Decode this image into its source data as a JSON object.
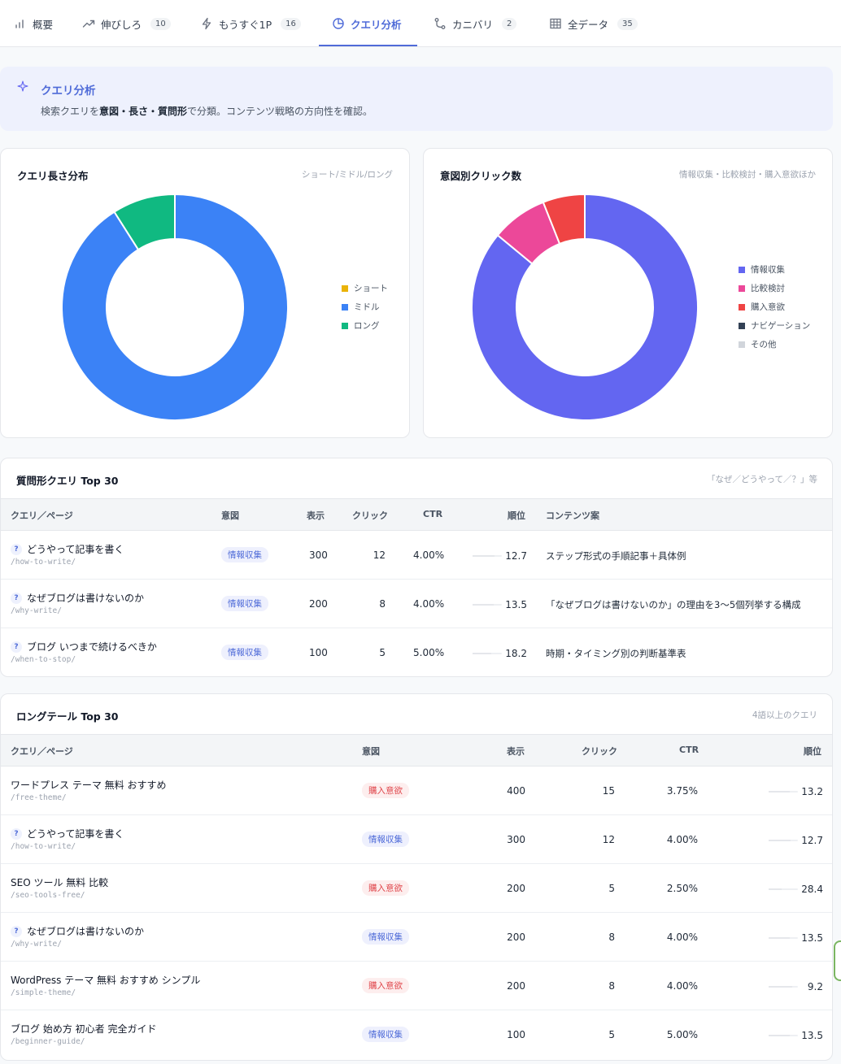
{
  "tabs": [
    {
      "label": "概要",
      "badge": null,
      "icon": "bar-chart-icon"
    },
    {
      "label": "伸びしろ",
      "badge": "10",
      "icon": "trend-up-icon"
    },
    {
      "label": "もうすぐ1P",
      "badge": "16",
      "icon": "lightning-icon"
    },
    {
      "label": "クエリ分析",
      "badge": null,
      "icon": "pie-chart-icon",
      "active": true
    },
    {
      "label": "カニバリ",
      "badge": "2",
      "icon": "branch-icon"
    },
    {
      "label": "全データ",
      "badge": "35",
      "icon": "grid-icon"
    }
  ],
  "banner": {
    "title": "クエリ分析",
    "desc_pre": "検索クエリを",
    "desc_bold": "意図・長さ・質問形",
    "desc_post": "で分類。コンテンツ戦略の方向性を確認。"
  },
  "length_card": {
    "title": "クエリ長さ分布",
    "sub": "ショート/ミドル/ロング"
  },
  "intent_card": {
    "title": "意図別クリック数",
    "sub": "情報収集・比較検討・購入意欲ほか"
  },
  "chart_data": [
    {
      "type": "pie",
      "title": "クエリ長さ分布",
      "labels": [
        "ショート",
        "ミドル",
        "ロング"
      ],
      "values": [
        0,
        91,
        9
      ],
      "colors": [
        "#eab308",
        "#3b82f6",
        "#10b981"
      ],
      "legend": "right"
    },
    {
      "type": "pie",
      "title": "意図別クリック数",
      "labels": [
        "情報収集",
        "比較検討",
        "購入意欲",
        "ナビゲーション",
        "その他"
      ],
      "values": [
        86,
        8,
        6,
        0,
        0
      ],
      "colors": [
        "#6366f1",
        "#ec4899",
        "#ef4444",
        "#334155",
        "#d1d5db"
      ],
      "legend": "right"
    }
  ],
  "question_table": {
    "title": "質問形クエリ Top 30",
    "sub": "「なぜ／どうやって／？」等",
    "headers": [
      "クエリ／ページ",
      "意図",
      "表示",
      "クリック",
      "CTR",
      "順位",
      "コンテンツ案"
    ],
    "rows": [
      {
        "q": "どうやって記事を書く",
        "path": "/how-to-write/",
        "intent": "情報収集",
        "imp": "300",
        "clk": "12",
        "ctr": "4.00%",
        "rank": "12.7",
        "idea": "ステップ形式の手順記事＋具体例"
      },
      {
        "q": "なぜブログは書けないのか",
        "path": "/why-write/",
        "intent": "情報収集",
        "imp": "200",
        "clk": "8",
        "ctr": "4.00%",
        "rank": "13.5",
        "idea": "「なぜブログは書けないのか」の理由を3〜5個列挙する構成"
      },
      {
        "q": "ブログ いつまで続けるべきか",
        "path": "/when-to-stop/",
        "intent": "情報収集",
        "imp": "100",
        "clk": "5",
        "ctr": "5.00%",
        "rank": "18.2",
        "idea": "時期・タイミング別の判断基準表"
      }
    ]
  },
  "longtail_table": {
    "title": "ロングテール Top 30",
    "sub": "4語以上のクエリ",
    "headers": [
      "クエリ／ページ",
      "意図",
      "表示",
      "クリック",
      "CTR",
      "順位"
    ],
    "rows": [
      {
        "q": "ワードプレス テーマ 無料 おすすめ",
        "question": false,
        "path": "/free-theme/",
        "intent": "購入意欲",
        "kind": "buy",
        "imp": "400",
        "clk": "15",
        "ctr": "3.75%",
        "rank": "13.2"
      },
      {
        "q": "どうやって記事を書く",
        "question": true,
        "path": "/how-to-write/",
        "intent": "情報収集",
        "kind": "info",
        "imp": "300",
        "clk": "12",
        "ctr": "4.00%",
        "rank": "12.7"
      },
      {
        "q": "SEO ツール 無料 比較",
        "question": false,
        "path": "/seo-tools-free/",
        "intent": "購入意欲",
        "kind": "buy",
        "imp": "200",
        "clk": "5",
        "ctr": "2.50%",
        "rank": "28.4"
      },
      {
        "q": "なぜブログは書けないのか",
        "question": true,
        "path": "/why-write/",
        "intent": "情報収集",
        "kind": "info",
        "imp": "200",
        "clk": "8",
        "ctr": "4.00%",
        "rank": "13.5"
      },
      {
        "q": "WordPress テーマ 無料 おすすめ シンプル",
        "question": false,
        "path": "/simple-theme/",
        "intent": "購入意欲",
        "kind": "buy",
        "imp": "200",
        "clk": "8",
        "ctr": "4.00%",
        "rank": "9.2"
      },
      {
        "q": "ブログ 始め方 初心者 完全ガイド",
        "question": false,
        "path": "/beginner-guide/",
        "intent": "情報収集",
        "kind": "info",
        "imp": "100",
        "clk": "5",
        "ctr": "5.00%",
        "rank": "13.5"
      }
    ]
  },
  "colors": {
    "accent": "#4f6bd8",
    "info": "#4f6bd8",
    "buy": "#e0474c"
  }
}
